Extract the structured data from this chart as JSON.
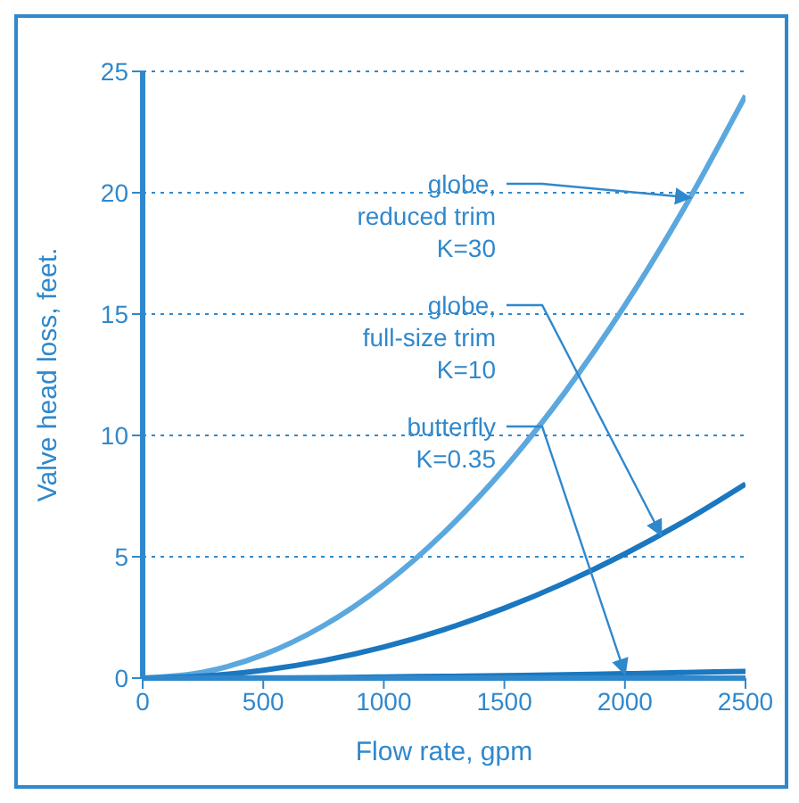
{
  "chart_data": {
    "type": "line",
    "xlabel": "Flow rate, gpm",
    "ylabel": "Valve head loss, feet.",
    "x": [
      0,
      250,
      500,
      750,
      1000,
      1250,
      1500,
      1750,
      2000,
      2250,
      2500
    ],
    "series": [
      {
        "color": "#5ba8de",
        "values": [
          0,
          0.24,
          0.96,
          2.16,
          3.84,
          6,
          8.64,
          11.76,
          15.36,
          19.44,
          24
        ]
      },
      {
        "color": "#1a77c0",
        "values": [
          0,
          0.08,
          0.32,
          0.72,
          1.28,
          2,
          2.88,
          3.92,
          5.12,
          6.48,
          8
        ]
      },
      {
        "color": "#1a77c0",
        "values": [
          0,
          0,
          0.01,
          0.02,
          0.05,
          0.07,
          0.1,
          0.14,
          0.18,
          0.23,
          0.28
        ]
      }
    ],
    "xlim": [
      0,
      2500
    ],
    "xticks": [
      0,
      500,
      1000,
      1500,
      2000,
      2500
    ],
    "ylim": [
      0,
      25
    ],
    "yticks": [
      0,
      5,
      10,
      15,
      20,
      25
    ],
    "grid": "y",
    "marker": "none",
    "line_style": "solid",
    "annotations": [
      {
        "text": "globe,\nreduced trim\nK=30",
        "x": 2270,
        "y": 19.8
      },
      {
        "text": "globe,\nfull-size trim\nK=10",
        "x": 2150,
        "y": 5.9
      },
      {
        "text": "butterfly\nK=0.35",
        "x": 2000,
        "y": 0.18
      }
    ]
  }
}
